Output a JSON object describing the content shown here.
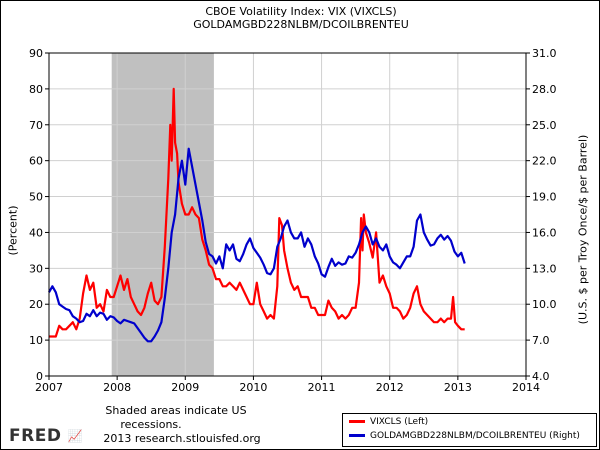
{
  "chart_data": {
    "type": "line",
    "title": "CBOE Volatility Index: VIX (VIXCLS)",
    "subtitle": "GOLDAMGBD228NLBM/DCOILBRENTEU",
    "xlabel": "",
    "ylabel_left": "(Percent)",
    "ylabel_right": "(U.S. $ per Troy Once/$ per Barrel)",
    "xlim": [
      2007,
      2014
    ],
    "ylim_left": [
      0,
      90
    ],
    "ylim_right": [
      4,
      31
    ],
    "xticks": [
      "2007",
      "2008",
      "2009",
      "2010",
      "2011",
      "2012",
      "2013",
      "2014"
    ],
    "yticks_left": [
      "0",
      "10",
      "20",
      "30",
      "40",
      "50",
      "60",
      "70",
      "80",
      "90"
    ],
    "yticks_right": [
      "4.0",
      "7.0",
      "10.0",
      "13.0",
      "16.0",
      "19.0",
      "22.0",
      "25.0",
      "28.0",
      "31.0"
    ],
    "grid": true,
    "recession": {
      "start": 2007.92,
      "end": 2009.42,
      "color": "#c0c0c0"
    },
    "series": [
      {
        "name": "VIXCLS (Left)",
        "axis": "left",
        "color": "#ff0000",
        "x": [
          2007.0,
          2007.05,
          2007.1,
          2007.15,
          2007.2,
          2007.25,
          2007.3,
          2007.35,
          2007.4,
          2007.45,
          2007.5,
          2007.55,
          2007.6,
          2007.65,
          2007.7,
          2007.75,
          2007.8,
          2007.85,
          2007.9,
          2007.95,
          2008.0,
          2008.05,
          2008.1,
          2008.15,
          2008.2,
          2008.25,
          2008.3,
          2008.35,
          2008.4,
          2008.45,
          2008.5,
          2008.55,
          2008.6,
          2008.65,
          2008.7,
          2008.75,
          2008.78,
          2008.8,
          2008.83,
          2008.85,
          2008.88,
          2008.9,
          2008.95,
          2009.0,
          2009.05,
          2009.1,
          2009.15,
          2009.2,
          2009.25,
          2009.3,
          2009.35,
          2009.4,
          2009.45,
          2009.5,
          2009.55,
          2009.6,
          2009.65,
          2009.7,
          2009.75,
          2009.8,
          2009.85,
          2009.9,
          2009.95,
          2010.0,
          2010.05,
          2010.1,
          2010.15,
          2010.2,
          2010.25,
          2010.3,
          2010.35,
          2010.38,
          2010.42,
          2010.45,
          2010.5,
          2010.55,
          2010.6,
          2010.65,
          2010.7,
          2010.75,
          2010.8,
          2010.85,
          2010.9,
          2010.95,
          2011.0,
          2011.05,
          2011.1,
          2011.15,
          2011.2,
          2011.25,
          2011.3,
          2011.35,
          2011.4,
          2011.45,
          2011.5,
          2011.55,
          2011.58,
          2011.6,
          2011.62,
          2011.65,
          2011.7,
          2011.75,
          2011.8,
          2011.85,
          2011.9,
          2011.95,
          2012.0,
          2012.05,
          2012.1,
          2012.15,
          2012.2,
          2012.25,
          2012.3,
          2012.35,
          2012.4,
          2012.45,
          2012.5,
          2012.55,
          2012.6,
          2012.65,
          2012.7,
          2012.75,
          2012.8,
          2012.85,
          2012.9,
          2012.93,
          2012.96,
          2013.0,
          2013.05,
          2013.1
        ],
        "values": [
          11,
          11,
          11,
          14,
          13,
          13,
          14,
          15,
          13,
          16,
          23,
          28,
          24,
          26,
          19,
          20,
          18,
          24,
          22,
          22,
          25,
          28,
          24,
          27,
          22,
          20,
          18,
          17,
          19,
          23,
          26,
          21,
          20,
          22,
          36,
          55,
          70,
          60,
          80,
          65,
          62,
          54,
          48,
          45,
          45,
          47,
          45,
          44,
          38,
          35,
          31,
          30,
          27,
          27,
          25,
          25,
          26,
          25,
          24,
          26,
          24,
          22,
          20,
          20,
          26,
          20,
          18,
          16,
          17,
          16,
          25,
          44,
          42,
          35,
          30,
          26,
          24,
          25,
          22,
          22,
          22,
          19,
          19,
          17,
          17,
          17,
          21,
          19,
          18,
          16,
          17,
          16,
          17,
          19,
          19,
          26,
          44,
          35,
          45,
          40,
          37,
          33,
          40,
          26,
          28,
          25,
          23,
          19,
          19,
          18,
          16,
          17,
          19,
          23,
          25,
          20,
          18,
          17,
          16,
          15,
          15,
          16,
          15,
          16,
          16,
          22,
          15,
          14,
          13,
          13
        ]
      },
      {
        "name": "GOLDAMGBD228NLBM/DCOILBRENTEU (Right)",
        "axis": "right",
        "color": "#0000cc",
        "x": [
          2007.0,
          2007.05,
          2007.1,
          2007.15,
          2007.2,
          2007.25,
          2007.3,
          2007.35,
          2007.4,
          2007.45,
          2007.5,
          2007.55,
          2007.6,
          2007.65,
          2007.7,
          2007.75,
          2007.8,
          2007.85,
          2007.9,
          2007.95,
          2008.0,
          2008.05,
          2008.1,
          2008.15,
          2008.2,
          2008.25,
          2008.3,
          2008.35,
          2008.4,
          2008.45,
          2008.5,
          2008.55,
          2008.6,
          2008.65,
          2008.7,
          2008.75,
          2008.8,
          2008.85,
          2008.9,
          2008.95,
          2009.0,
          2009.05,
          2009.1,
          2009.15,
          2009.2,
          2009.25,
          2009.3,
          2009.35,
          2009.4,
          2009.45,
          2009.5,
          2009.55,
          2009.6,
          2009.65,
          2009.7,
          2009.75,
          2009.8,
          2009.85,
          2009.9,
          2009.95,
          2010.0,
          2010.05,
          2010.1,
          2010.15,
          2010.2,
          2010.25,
          2010.3,
          2010.35,
          2010.4,
          2010.45,
          2010.5,
          2010.55,
          2010.6,
          2010.65,
          2010.7,
          2010.75,
          2010.8,
          2010.85,
          2010.9,
          2010.95,
          2011.0,
          2011.05,
          2011.1,
          2011.15,
          2011.2,
          2011.25,
          2011.3,
          2011.35,
          2011.4,
          2011.45,
          2011.5,
          2011.55,
          2011.6,
          2011.65,
          2011.7,
          2011.75,
          2011.8,
          2011.85,
          2011.9,
          2011.95,
          2012.0,
          2012.05,
          2012.1,
          2012.15,
          2012.2,
          2012.25,
          2012.3,
          2012.35,
          2012.4,
          2012.45,
          2012.5,
          2012.55,
          2012.6,
          2012.65,
          2012.7,
          2012.75,
          2012.8,
          2012.85,
          2012.9,
          2012.95,
          2013.0,
          2013.05,
          2013.1
        ],
        "values": [
          11.0,
          11.5,
          11.0,
          10.0,
          9.8,
          9.6,
          9.5,
          9.0,
          8.8,
          8.5,
          8.6,
          9.2,
          9.0,
          9.5,
          9.0,
          9.3,
          9.2,
          8.7,
          9.0,
          8.9,
          8.6,
          8.4,
          8.7,
          8.6,
          8.5,
          8.4,
          8.0,
          7.6,
          7.2,
          6.9,
          6.9,
          7.3,
          7.8,
          8.5,
          10.5,
          13.0,
          16.0,
          17.5,
          20.5,
          22.0,
          20.0,
          23.0,
          21.5,
          20.0,
          18.5,
          17.0,
          15.2,
          14.2,
          14.0,
          13.4,
          14.0,
          13.0,
          15.0,
          14.5,
          15.0,
          13.8,
          13.6,
          14.2,
          15.0,
          15.5,
          14.7,
          14.3,
          13.9,
          13.3,
          12.6,
          12.5,
          13.0,
          14.8,
          15.5,
          16.5,
          17.0,
          16.0,
          15.5,
          15.5,
          16.0,
          14.8,
          15.5,
          15.0,
          14.0,
          13.4,
          12.5,
          12.3,
          13.1,
          13.8,
          13.2,
          13.5,
          13.3,
          13.4,
          14.0,
          13.9,
          14.3,
          15.0,
          16.0,
          16.5,
          16.0,
          15.0,
          15.5,
          14.8,
          14.5,
          15.0,
          14.0,
          13.5,
          13.3,
          13.0,
          13.5,
          14.0,
          14.0,
          14.8,
          17.0,
          17.5,
          16.0,
          15.4,
          14.9,
          15.0,
          15.5,
          15.8,
          15.4,
          15.7,
          15.3,
          14.4,
          14.0,
          14.3,
          13.4
        ]
      }
    ]
  },
  "footer": {
    "recession_note_line1": "Shaded areas indicate US",
    "recession_note_line2": "recessions.",
    "source": "2013 research.stlouisfed.org",
    "logo_text": "FRED",
    "logo_spark": "📈"
  }
}
